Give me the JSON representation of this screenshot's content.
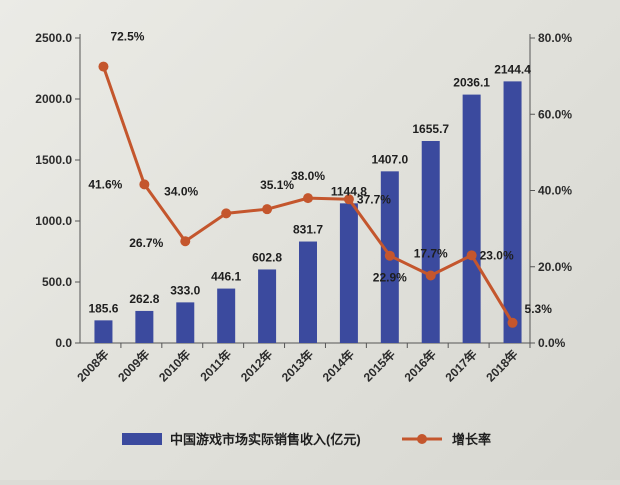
{
  "chart_data": {
    "type": "bar",
    "categories": [
      "2008年",
      "2009年",
      "2010年",
      "2011年",
      "2012年",
      "2013年",
      "2014年",
      "2015年",
      "2016年",
      "2017年",
      "2018年"
    ],
    "series": [
      {
        "name": "中国游戏市场实际销售收入(亿元)",
        "type": "bar",
        "axis": "left",
        "values": [
          185.6,
          262.8,
          333.0,
          446.1,
          602.8,
          831.7,
          1144.8,
          1407.0,
          1655.7,
          2036.1,
          2144.4
        ],
        "labels": [
          "185.6",
          "262.8",
          "333.0",
          "446.1",
          "602.8",
          "831.7",
          "1144.8",
          "1407.0",
          "1655.7",
          "2036.1",
          "2144.4"
        ],
        "color": "#3b4a9e"
      },
      {
        "name": "增长率",
        "type": "line",
        "axis": "right",
        "values": [
          72.5,
          41.6,
          26.7,
          34.0,
          35.1,
          38.0,
          37.7,
          22.9,
          17.7,
          23.0,
          5.3
        ],
        "labels": [
          "72.5%",
          "41.6%",
          "26.7%",
          "34.0%",
          "35.1%",
          "38.0%",
          "37.7%",
          "22.9%",
          "17.7%",
          "23.0%",
          "5.3%"
        ],
        "color": "#c4562d"
      }
    ],
    "y_left": {
      "ylim": [
        0,
        2500
      ],
      "ticks": [
        "0.0",
        "500.0",
        "1000.0",
        "1500.0",
        "2000.0",
        "2500.0"
      ]
    },
    "y_right": {
      "ylim": [
        0,
        80
      ],
      "ticks": [
        "0.0%",
        "20.0%",
        "40.0%",
        "60.0%",
        "80.0%"
      ]
    },
    "grid": false,
    "legend": "bottom"
  }
}
